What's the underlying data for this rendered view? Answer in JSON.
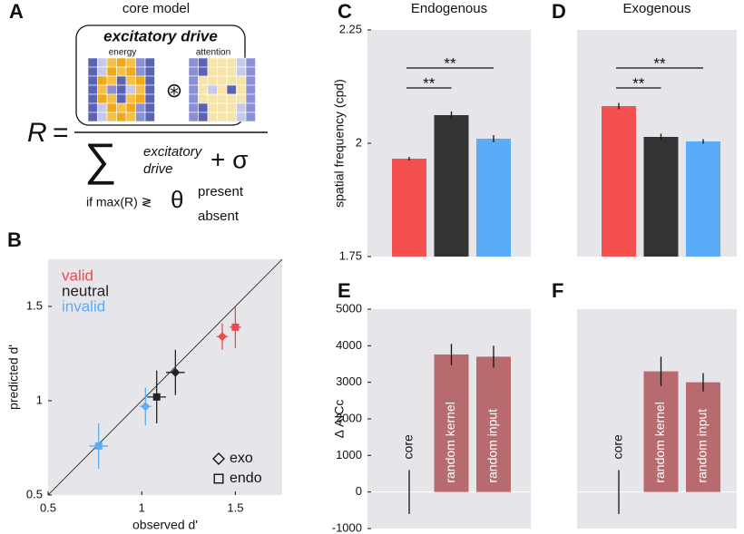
{
  "panel_a": {
    "label": "A",
    "title": "core model",
    "numerator_label": "excitatory drive",
    "maps": [
      "energy",
      "attention"
    ],
    "operator": "⊛",
    "lhs": "R",
    "equals": "=",
    "sum": "∑",
    "denominator_term": [
      "excitatory",
      "drive"
    ],
    "plus_sigma": "+ σ",
    "rule": "if max(R) ≷",
    "threshold": "θ",
    "outcomes": [
      "present",
      "absent"
    ]
  },
  "chart_data": [
    {
      "type": "scatter",
      "panel": "B",
      "xlabel": "observed d'",
      "ylabel": "predicted d'",
      "xlim": [
        0.5,
        1.75
      ],
      "ylim": [
        0.5,
        1.75
      ],
      "xticks": [
        0.5,
        1,
        1.5
      ],
      "yticks": [
        0.5,
        1,
        1.5
      ],
      "identity_line": true,
      "markers": [
        {
          "label": "exo",
          "shape": "diamond"
        },
        {
          "label": "endo",
          "shape": "square"
        }
      ],
      "series": [
        {
          "name": "valid",
          "color": "#f0474f",
          "x": [
            1.43,
            1.5
          ],
          "y": [
            1.34,
            1.39
          ],
          "xerr": [
            0.03,
            0.03
          ],
          "yerr": [
            0.07,
            0.11
          ]
        },
        {
          "name": "neutral",
          "color": "#222222",
          "x": [
            1.18,
            1.08
          ],
          "y": [
            1.15,
            1.02
          ],
          "xerr": [
            0.05,
            0.05
          ],
          "yerr": [
            0.12,
            0.14
          ]
        },
        {
          "name": "invalid",
          "color": "#5aabf8",
          "x": [
            1.02,
            0.77
          ],
          "y": [
            0.97,
            0.76
          ],
          "xerr": [
            0.03,
            0.05
          ],
          "yerr": [
            0.1,
            0.12
          ]
        }
      ]
    },
    {
      "type": "bar",
      "panel": "C",
      "title": "Endogenous",
      "ylabel": "spatial frequency (cpd)",
      "ylim": [
        1.75,
        2.25
      ],
      "yticks": [
        1.75,
        2,
        2.25
      ],
      "values": [
        1.966,
        2.062,
        2.01
      ],
      "errors": [
        0.004,
        0.008,
        0.008
      ],
      "colors": [
        "#f45050",
        "#333333",
        "#5aabf8"
      ],
      "significance": [
        {
          "pair": [
            0,
            1
          ],
          "label": "**"
        },
        {
          "pair": [
            0,
            2
          ],
          "label": "**"
        }
      ]
    },
    {
      "type": "bar",
      "panel": "D",
      "title": "Exogenous",
      "ylim": [
        1.75,
        2.25
      ],
      "values": [
        2.082,
        2.014,
        2.004
      ],
      "errors": [
        0.007,
        0.007,
        0.005
      ],
      "colors": [
        "#f45050",
        "#333333",
        "#5aabf8"
      ],
      "significance": [
        {
          "pair": [
            0,
            1
          ],
          "label": "**"
        },
        {
          "pair": [
            0,
            2
          ],
          "label": "**"
        }
      ]
    },
    {
      "type": "bar",
      "panel": "E",
      "ylabel": "Δ AICc",
      "ylim": [
        -1000,
        5000
      ],
      "yticks": [
        -1000,
        0,
        1000,
        2000,
        3000,
        4000,
        5000
      ],
      "categories": [
        "core",
        "random kernel",
        "random input"
      ],
      "values": [
        0,
        3760,
        3700
      ],
      "errors": [
        600,
        290,
        300
      ],
      "colors": [
        "#b86b6f",
        "#b86b6f",
        "#b86b6f"
      ]
    },
    {
      "type": "bar",
      "panel": "F",
      "ylim": [
        -1000,
        5000
      ],
      "categories": [
        "core",
        "random kernel",
        "random input"
      ],
      "values": [
        0,
        3300,
        3000
      ],
      "errors": [
        600,
        400,
        250
      ],
      "colors": [
        "#b86b6f",
        "#b86b6f",
        "#b86b6f"
      ]
    }
  ]
}
